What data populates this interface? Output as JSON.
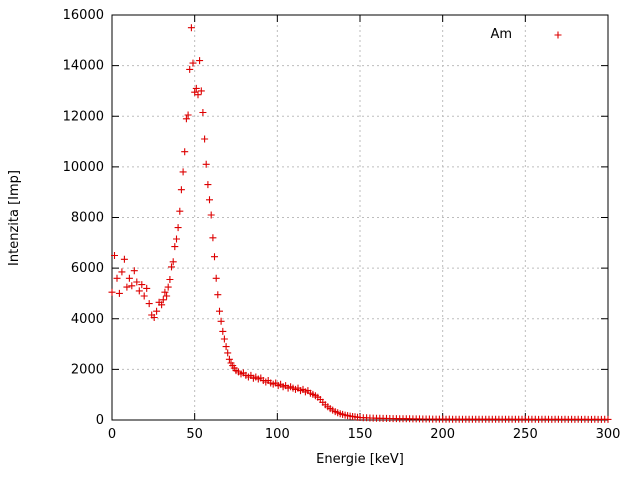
{
  "chart": {
    "ylabel": "Intenzita [Imp]",
    "xlabel": "Energie [keV]",
    "legend": "Am"
  },
  "chart_data": {
    "type": "scatter",
    "title": "",
    "xlabel": "Energie [keV]",
    "ylabel": "Intenzita [Imp]",
    "xlim": [
      0,
      300
    ],
    "ylim": [
      0,
      16000
    ],
    "x_ticks": [
      0,
      50,
      100,
      150,
      200,
      250,
      300
    ],
    "y_ticks": [
      0,
      2000,
      4000,
      6000,
      8000,
      10000,
      12000,
      14000,
      16000
    ],
    "grid": true,
    "legend_position": "top-right-inside",
    "marker": "plus",
    "marker_color": "#dd0000",
    "series": [
      {
        "name": "Am",
        "points": [
          [
            0,
            5050
          ],
          [
            1.5,
            6500
          ],
          [
            3,
            5600
          ],
          [
            4.5,
            5000
          ],
          [
            6,
            5850
          ],
          [
            7.5,
            6350
          ],
          [
            9,
            5250
          ],
          [
            10.5,
            5600
          ],
          [
            12,
            5300
          ],
          [
            13.5,
            5900
          ],
          [
            15,
            5450
          ],
          [
            16.5,
            5100
          ],
          [
            18,
            5350
          ],
          [
            19.5,
            4900
          ],
          [
            21,
            5200
          ],
          [
            22.5,
            4600
          ],
          [
            24,
            4150
          ],
          [
            25.5,
            4050
          ],
          [
            27,
            4300
          ],
          [
            28.5,
            4650
          ],
          [
            30,
            4550
          ],
          [
            31,
            4750
          ],
          [
            32,
            5050
          ],
          [
            33,
            4900
          ],
          [
            34,
            5250
          ],
          [
            35,
            5550
          ],
          [
            36,
            6050
          ],
          [
            37,
            6250
          ],
          [
            38,
            6850
          ],
          [
            39,
            7150
          ],
          [
            40,
            7600
          ],
          [
            41,
            8250
          ],
          [
            42,
            9100
          ],
          [
            43,
            9800
          ],
          [
            44,
            10600
          ],
          [
            45,
            11900
          ],
          [
            46,
            12050
          ],
          [
            47,
            13850
          ],
          [
            48,
            15500
          ],
          [
            49,
            14100
          ],
          [
            50,
            12950
          ],
          [
            51,
            13100
          ],
          [
            52,
            12850
          ],
          [
            53,
            14200
          ],
          [
            54,
            13000
          ],
          [
            55,
            12150
          ],
          [
            56,
            11100
          ],
          [
            57,
            10100
          ],
          [
            58,
            9300
          ],
          [
            59,
            8700
          ],
          [
            60,
            8100
          ],
          [
            61,
            7200
          ],
          [
            62,
            6450
          ],
          [
            63,
            5600
          ],
          [
            64,
            4950
          ],
          [
            65,
            4300
          ],
          [
            66,
            3900
          ],
          [
            67,
            3500
          ],
          [
            68,
            3200
          ],
          [
            69,
            2900
          ],
          [
            70,
            2650
          ],
          [
            71,
            2400
          ],
          [
            72,
            2250
          ],
          [
            73,
            2150
          ],
          [
            74,
            2050
          ],
          [
            75,
            1950
          ],
          [
            76.5,
            1900
          ],
          [
            78,
            1820
          ],
          [
            79.5,
            1860
          ],
          [
            81,
            1760
          ],
          [
            82.5,
            1700
          ],
          [
            84,
            1760
          ],
          [
            85.5,
            1650
          ],
          [
            87,
            1700
          ],
          [
            88.5,
            1620
          ],
          [
            90,
            1660
          ],
          [
            91.5,
            1560
          ],
          [
            93,
            1500
          ],
          [
            94.5,
            1560
          ],
          [
            96,
            1460
          ],
          [
            97.5,
            1420
          ],
          [
            99,
            1460
          ],
          [
            100.5,
            1360
          ],
          [
            102,
            1410
          ],
          [
            103.5,
            1310
          ],
          [
            105,
            1360
          ],
          [
            106.5,
            1260
          ],
          [
            108,
            1310
          ],
          [
            109.5,
            1260
          ],
          [
            111,
            1210
          ],
          [
            112.5,
            1260
          ],
          [
            114,
            1160
          ],
          [
            115.5,
            1210
          ],
          [
            117,
            1110
          ],
          [
            118.5,
            1160
          ],
          [
            120,
            1060
          ],
          [
            121.5,
            1010
          ],
          [
            123,
            960
          ],
          [
            124.5,
            900
          ],
          [
            126,
            810
          ],
          [
            127.5,
            700
          ],
          [
            129,
            600
          ],
          [
            130.5,
            520
          ],
          [
            132,
            450
          ],
          [
            133.5,
            390
          ],
          [
            135,
            330
          ],
          [
            136.5,
            290
          ],
          [
            138,
            250
          ],
          [
            139.5,
            220
          ],
          [
            141,
            195
          ],
          [
            142.5,
            175
          ],
          [
            144,
            155
          ],
          [
            145.5,
            140
          ],
          [
            147,
            125
          ],
          [
            148.5,
            110
          ],
          [
            150,
            100
          ],
          [
            152,
            92
          ],
          [
            154,
            86
          ],
          [
            156,
            80
          ],
          [
            158,
            76
          ],
          [
            160,
            72
          ],
          [
            162,
            68
          ],
          [
            164,
            65
          ],
          [
            166,
            62
          ],
          [
            168,
            60
          ],
          [
            170,
            57
          ],
          [
            172,
            55
          ],
          [
            174,
            52
          ],
          [
            176,
            50
          ],
          [
            178,
            50
          ],
          [
            180,
            47
          ],
          [
            182,
            45
          ],
          [
            184,
            44
          ],
          [
            186,
            42
          ],
          [
            188,
            41
          ],
          [
            190,
            40
          ],
          [
            192,
            38
          ],
          [
            194,
            37
          ],
          [
            196,
            36
          ],
          [
            198,
            35
          ],
          [
            200,
            34
          ],
          [
            202,
            32
          ],
          [
            204,
            34
          ],
          [
            206,
            30
          ],
          [
            208,
            33
          ],
          [
            210,
            31
          ],
          [
            212,
            29
          ],
          [
            214,
            32
          ],
          [
            216,
            30
          ],
          [
            218,
            28
          ],
          [
            220,
            31
          ],
          [
            222,
            29
          ],
          [
            224,
            30
          ],
          [
            226,
            28
          ],
          [
            228,
            31
          ],
          [
            230,
            27
          ],
          [
            232,
            30
          ],
          [
            234,
            28
          ],
          [
            236,
            29
          ],
          [
            238,
            27
          ],
          [
            240,
            30
          ],
          [
            242,
            28
          ],
          [
            244,
            26
          ],
          [
            246,
            29
          ],
          [
            248,
            27
          ],
          [
            250,
            28
          ],
          [
            252,
            26
          ],
          [
            254,
            29
          ],
          [
            256,
            27
          ],
          [
            258,
            25
          ],
          [
            260,
            28
          ],
          [
            262,
            26
          ],
          [
            264,
            27
          ],
          [
            266,
            25
          ],
          [
            268,
            28
          ],
          [
            270,
            26
          ],
          [
            272,
            25
          ],
          [
            274,
            27
          ],
          [
            276,
            24
          ],
          [
            278,
            26
          ],
          [
            280,
            25
          ],
          [
            282,
            27
          ],
          [
            284,
            24
          ],
          [
            286,
            26
          ],
          [
            288,
            25
          ],
          [
            290,
            24
          ],
          [
            292,
            26
          ],
          [
            294,
            25
          ],
          [
            296,
            24
          ],
          [
            298,
            26
          ],
          [
            300,
            25
          ]
        ]
      }
    ]
  }
}
